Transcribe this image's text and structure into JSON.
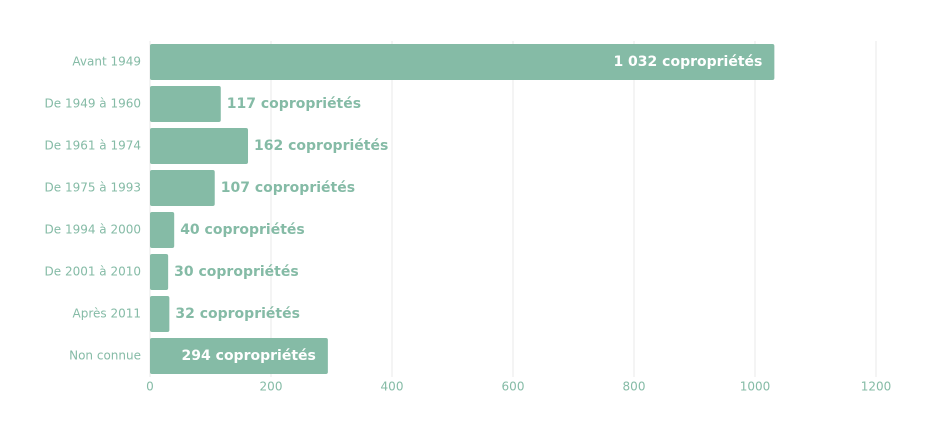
{
  "chart_data": {
    "type": "hbar",
    "categories": [
      "Avant 1949",
      "De 1949 à 1960",
      "De 1961 à 1974",
      "De 1975 à 1993",
      "De 1994 à 2000",
      "De 2001 à 2010",
      "Après 2011",
      "Non connue"
    ],
    "values": [
      1032,
      117,
      162,
      107,
      40,
      30,
      32,
      294
    ],
    "value_labels": [
      "1 032 copropriétés",
      "117 copropriétés",
      "162 copropriétés",
      "107 copropriétés",
      "40 copropriétés",
      "30 copropriétés",
      "32 copropriétés",
      "294 copropriétés"
    ],
    "color": "#85bba6",
    "xlim": [
      0,
      1200
    ],
    "xticks": [
      0,
      200,
      400,
      600,
      800,
      1000,
      1200
    ],
    "grid": true
  }
}
